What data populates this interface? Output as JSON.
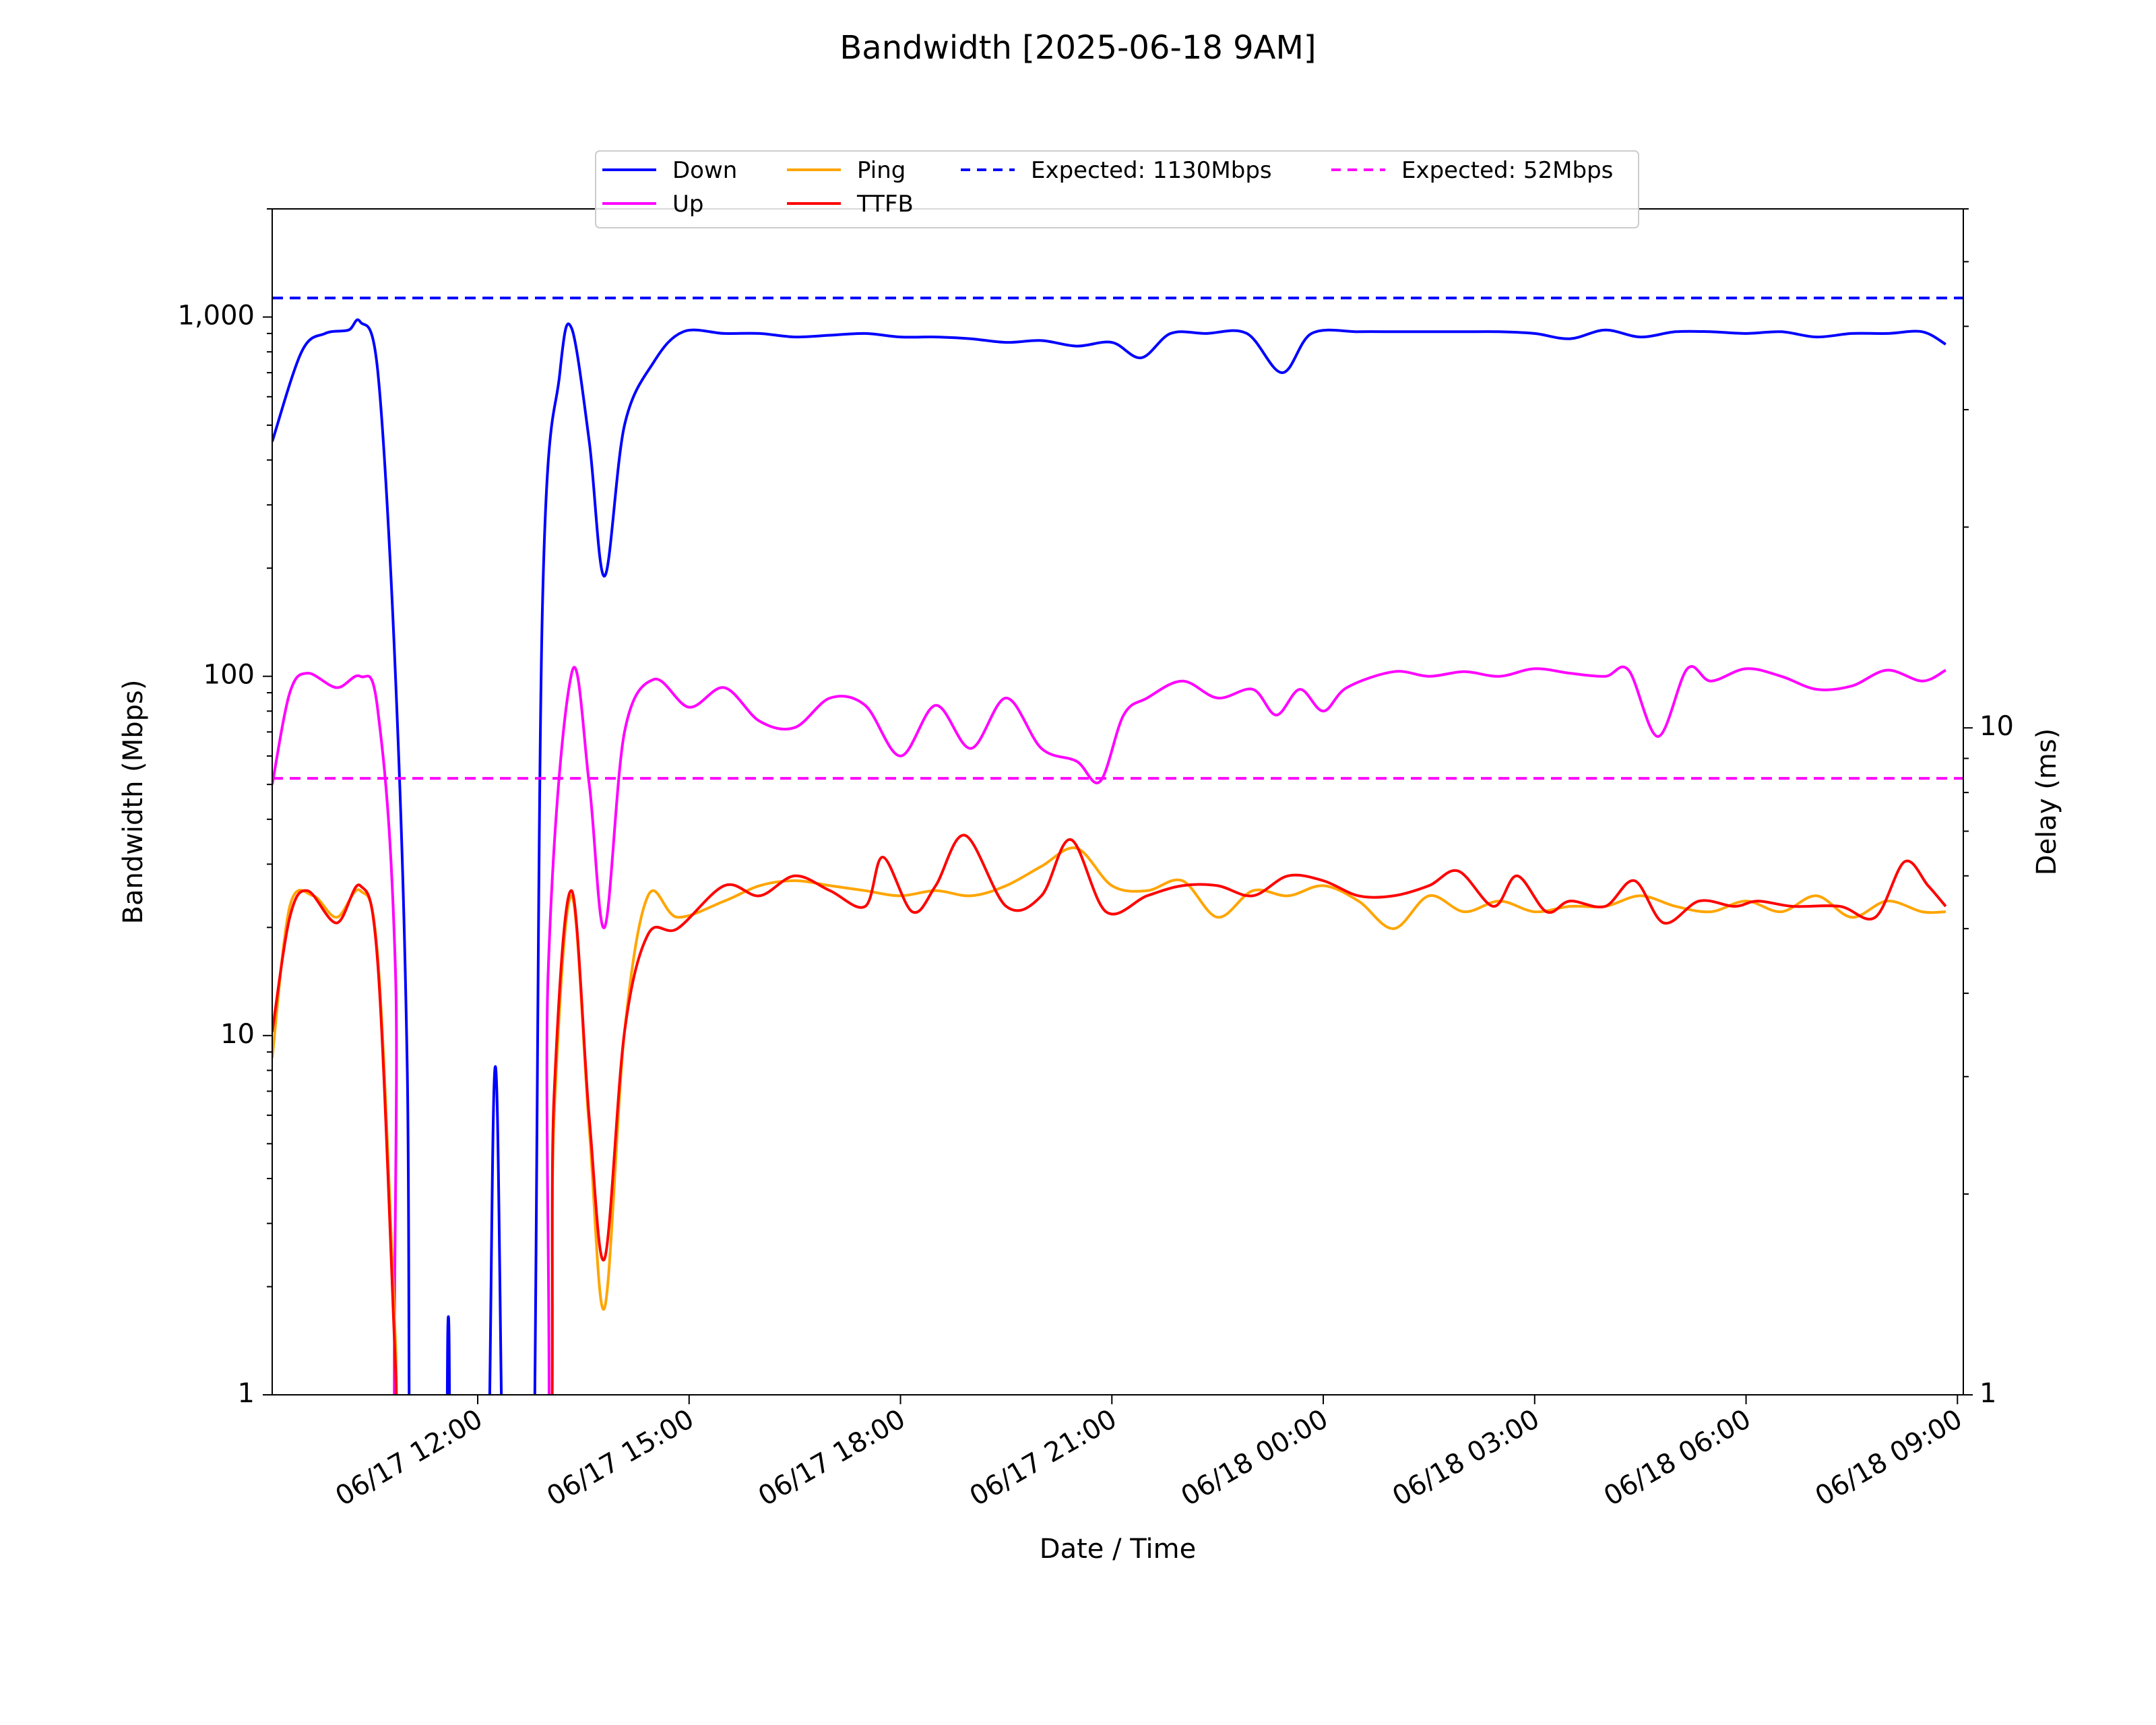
{
  "chart_data": {
    "type": "line",
    "title": "Bandwidth [2025-06-18 9AM]",
    "xlabel": "Date / Time",
    "ylabel": "Bandwidth (Mbps)",
    "ylabel_right": "Delay (ms)",
    "y_scale": "log",
    "ylim": [
      1,
      2000
    ],
    "y_ticks": [
      1,
      10,
      100,
      1000
    ],
    "y_tick_labels": [
      "1",
      "10",
      "100",
      "1,000"
    ],
    "y2_scale": "log",
    "y2lim": [
      1,
      60
    ],
    "y2_ticks": [
      1,
      10
    ],
    "y2_tick_labels": [
      "1",
      "10"
    ],
    "xlim": [
      "2025-06-17 09:05",
      "2025-06-18 09:05"
    ],
    "x_ticks": [
      "2025-06-17 12:00",
      "2025-06-17 15:00",
      "2025-06-17 18:00",
      "2025-06-17 21:00",
      "2025-06-18 00:00",
      "2025-06-18 03:00",
      "2025-06-18 06:00",
      "2025-06-18 09:00"
    ],
    "x_tick_labels": [
      "06/17 12:00",
      "06/17 15:00",
      "06/17 18:00",
      "06/17 21:00",
      "06/18 00:00",
      "06/18 03:00",
      "06/18 06:00",
      "06/18 09:00"
    ],
    "legend_position": "top-center",
    "grid": false,
    "series": [
      {
        "name": "Down",
        "axis": "left",
        "color": "#0000ff",
        "style": "solid",
        "points": [
          [
            "2025-06-17 09:05",
            450
          ],
          [
            "2025-06-17 09:30",
            800
          ],
          [
            "2025-06-17 09:50",
            900
          ],
          [
            "2025-06-17 10:10",
            920
          ],
          [
            "2025-06-17 10:20",
            970
          ],
          [
            "2025-06-17 10:35",
            700
          ],
          [
            "2025-06-17 10:50",
            100
          ],
          [
            "2025-06-17 11:00",
            8
          ],
          [
            "2025-06-17 11:05",
            1
          ],
          [
            "2025-06-17 11:30",
            1
          ],
          [
            "2025-06-17 11:35",
            1.65
          ],
          [
            "2025-06-17 11:40",
            1
          ],
          [
            "2025-06-17 12:05",
            1
          ],
          [
            "2025-06-17 12:15",
            8.2
          ],
          [
            "2025-06-17 12:25",
            1
          ],
          [
            "2025-06-17 12:45",
            1
          ],
          [
            "2025-06-17 12:55",
            150
          ],
          [
            "2025-06-17 13:10",
            700
          ],
          [
            "2025-06-17 13:20",
            930
          ],
          [
            "2025-06-17 13:35",
            450
          ],
          [
            "2025-06-17 13:48",
            190
          ],
          [
            "2025-06-17 14:05",
            500
          ],
          [
            "2025-06-17 14:30",
            750
          ],
          [
            "2025-06-17 14:55",
            910
          ],
          [
            "2025-06-17 15:30",
            900
          ],
          [
            "2025-06-17 16:00",
            900
          ],
          [
            "2025-06-17 16:30",
            880
          ],
          [
            "2025-06-17 17:00",
            890
          ],
          [
            "2025-06-17 17:30",
            900
          ],
          [
            "2025-06-17 18:00",
            880
          ],
          [
            "2025-06-17 18:30",
            880
          ],
          [
            "2025-06-17 19:00",
            870
          ],
          [
            "2025-06-17 19:30",
            850
          ],
          [
            "2025-06-17 20:00",
            860
          ],
          [
            "2025-06-17 20:30",
            830
          ],
          [
            "2025-06-17 21:00",
            850
          ],
          [
            "2025-06-17 21:25",
            770
          ],
          [
            "2025-06-17 21:50",
            900
          ],
          [
            "2025-06-17 22:20",
            900
          ],
          [
            "2025-06-17 22:55",
            900
          ],
          [
            "2025-06-17 23:25",
            700
          ],
          [
            "2025-06-17 23:50",
            900
          ],
          [
            "2025-06-18 00:30",
            910
          ],
          [
            "2025-06-18 01:00",
            910
          ],
          [
            "2025-06-18 01:30",
            910
          ],
          [
            "2025-06-18 02:00",
            910
          ],
          [
            "2025-06-18 02:30",
            910
          ],
          [
            "2025-06-18 03:00",
            900
          ],
          [
            "2025-06-18 03:30",
            870
          ],
          [
            "2025-06-18 04:00",
            920
          ],
          [
            "2025-06-18 04:30",
            880
          ],
          [
            "2025-06-18 05:00",
            910
          ],
          [
            "2025-06-18 05:30",
            910
          ],
          [
            "2025-06-18 06:00",
            900
          ],
          [
            "2025-06-18 06:30",
            910
          ],
          [
            "2025-06-18 07:00",
            880
          ],
          [
            "2025-06-18 07:30",
            900
          ],
          [
            "2025-06-18 08:00",
            900
          ],
          [
            "2025-06-18 08:30",
            910
          ],
          [
            "2025-06-18 08:50",
            840
          ]
        ]
      },
      {
        "name": "Up",
        "axis": "left",
        "color": "#ff00ff",
        "style": "solid",
        "points": [
          [
            "2025-06-17 09:05",
            50
          ],
          [
            "2025-06-17 09:20",
            90
          ],
          [
            "2025-06-17 09:35",
            102
          ],
          [
            "2025-06-17 10:00",
            93
          ],
          [
            "2025-06-17 10:20",
            100
          ],
          [
            "2025-06-17 10:35",
            80
          ],
          [
            "2025-06-17 10:50",
            15
          ],
          [
            "2025-06-17 11:00",
            1
          ],
          [
            "2025-06-17 12:50",
            1
          ],
          [
            "2025-06-17 13:00",
            15
          ],
          [
            "2025-06-17 13:20",
            102
          ],
          [
            "2025-06-17 13:35",
            50
          ],
          [
            "2025-06-17 13:48",
            20
          ],
          [
            "2025-06-17 14:05",
            70
          ],
          [
            "2025-06-17 14:30",
            98
          ],
          [
            "2025-06-17 15:00",
            82
          ],
          [
            "2025-06-17 15:30",
            93
          ],
          [
            "2025-06-17 16:00",
            75
          ],
          [
            "2025-06-17 16:30",
            72
          ],
          [
            "2025-06-17 17:00",
            87
          ],
          [
            "2025-06-17 17:30",
            83
          ],
          [
            "2025-06-17 18:00",
            60
          ],
          [
            "2025-06-17 18:30",
            83
          ],
          [
            "2025-06-17 19:00",
            63
          ],
          [
            "2025-06-17 19:30",
            87
          ],
          [
            "2025-06-17 20:00",
            63
          ],
          [
            "2025-06-17 20:30",
            58
          ],
          [
            "2025-06-17 20:50",
            51
          ],
          [
            "2025-06-17 21:10",
            78
          ],
          [
            "2025-06-17 21:30",
            87
          ],
          [
            "2025-06-17 22:00",
            97
          ],
          [
            "2025-06-17 22:30",
            87
          ],
          [
            "2025-06-17 23:00",
            92
          ],
          [
            "2025-06-17 23:20",
            78
          ],
          [
            "2025-06-17 23:40",
            92
          ],
          [
            "2025-06-18 00:00",
            80
          ],
          [
            "2025-06-18 00:20",
            93
          ],
          [
            "2025-06-18 01:00",
            103
          ],
          [
            "2025-06-18 01:30",
            100
          ],
          [
            "2025-06-18 02:00",
            103
          ],
          [
            "2025-06-18 02:30",
            100
          ],
          [
            "2025-06-18 03:00",
            105
          ],
          [
            "2025-06-18 03:30",
            102
          ],
          [
            "2025-06-18 04:00",
            100
          ],
          [
            "2025-06-18 04:20",
            104
          ],
          [
            "2025-06-18 04:45",
            68
          ],
          [
            "2025-06-18 05:10",
            105
          ],
          [
            "2025-06-18 05:30",
            97
          ],
          [
            "2025-06-18 06:00",
            105
          ],
          [
            "2025-06-18 06:30",
            100
          ],
          [
            "2025-06-18 07:00",
            92
          ],
          [
            "2025-06-18 07:30",
            94
          ],
          [
            "2025-06-18 08:00",
            104
          ],
          [
            "2025-06-18 08:30",
            97
          ],
          [
            "2025-06-18 08:50",
            104
          ]
        ]
      },
      {
        "name": "Ping",
        "axis": "right",
        "color": "#ffa500",
        "style": "solid",
        "points": [
          [
            "2025-06-17 09:05",
            3.2
          ],
          [
            "2025-06-17 09:20",
            5.4
          ],
          [
            "2025-06-17 09:40",
            5.6
          ],
          [
            "2025-06-17 10:00",
            5.2
          ],
          [
            "2025-06-17 10:20",
            5.7
          ],
          [
            "2025-06-17 10:35",
            4.5
          ],
          [
            "2025-06-17 10:50",
            1.2
          ],
          [
            "2025-06-17 11:00",
            1
          ],
          [
            "2025-06-17 12:50",
            1
          ],
          [
            "2025-06-17 13:05",
            2.6
          ],
          [
            "2025-06-17 13:20",
            5.6
          ],
          [
            "2025-06-17 13:35",
            2.5
          ],
          [
            "2025-06-17 13:48",
            1.35
          ],
          [
            "2025-06-17 14:05",
            3.5
          ],
          [
            "2025-06-17 14:25",
            5.6
          ],
          [
            "2025-06-17 14:50",
            5.2
          ],
          [
            "2025-06-17 15:30",
            5.5
          ],
          [
            "2025-06-17 16:00",
            5.8
          ],
          [
            "2025-06-17 16:30",
            5.9
          ],
          [
            "2025-06-17 17:00",
            5.8
          ],
          [
            "2025-06-17 17:30",
            5.7
          ],
          [
            "2025-06-17 18:00",
            5.6
          ],
          [
            "2025-06-17 18:30",
            5.7
          ],
          [
            "2025-06-17 19:00",
            5.6
          ],
          [
            "2025-06-17 19:30",
            5.8
          ],
          [
            "2025-06-17 20:00",
            6.2
          ],
          [
            "2025-06-17 20:30",
            6.6
          ],
          [
            "2025-06-17 21:00",
            5.8
          ],
          [
            "2025-06-17 21:30",
            5.7
          ],
          [
            "2025-06-17 22:00",
            5.9
          ],
          [
            "2025-06-17 22:30",
            5.2
          ],
          [
            "2025-06-17 23:00",
            5.7
          ],
          [
            "2025-06-17 23:30",
            5.6
          ],
          [
            "2025-06-18 00:00",
            5.8
          ],
          [
            "2025-06-18 00:30",
            5.5
          ],
          [
            "2025-06-18 01:00",
            5.0
          ],
          [
            "2025-06-18 01:30",
            5.6
          ],
          [
            "2025-06-18 02:00",
            5.3
          ],
          [
            "2025-06-18 02:30",
            5.5
          ],
          [
            "2025-06-18 03:00",
            5.3
          ],
          [
            "2025-06-18 03:30",
            5.4
          ],
          [
            "2025-06-18 04:00",
            5.4
          ],
          [
            "2025-06-18 04:30",
            5.6
          ],
          [
            "2025-06-18 05:00",
            5.4
          ],
          [
            "2025-06-18 05:30",
            5.3
          ],
          [
            "2025-06-18 06:00",
            5.5
          ],
          [
            "2025-06-18 06:30",
            5.3
          ],
          [
            "2025-06-18 07:00",
            5.6
          ],
          [
            "2025-06-18 07:30",
            5.2
          ],
          [
            "2025-06-18 08:00",
            5.5
          ],
          [
            "2025-06-18 08:30",
            5.3
          ],
          [
            "2025-06-18 08:50",
            5.3
          ]
        ]
      },
      {
        "name": "TTFB",
        "axis": "right",
        "color": "#ff0000",
        "style": "solid",
        "points": [
          [
            "2025-06-17 09:05",
            3.5
          ],
          [
            "2025-06-17 09:20",
            5.2
          ],
          [
            "2025-06-17 09:35",
            5.7
          ],
          [
            "2025-06-17 10:00",
            5.1
          ],
          [
            "2025-06-17 10:20",
            5.8
          ],
          [
            "2025-06-17 10:35",
            4.4
          ],
          [
            "2025-06-17 10:50",
            1.1
          ],
          [
            "2025-06-17 11:00",
            1
          ],
          [
            "2025-06-17 12:50",
            1
          ],
          [
            "2025-06-17 13:05",
            2.8
          ],
          [
            "2025-06-17 13:20",
            5.7
          ],
          [
            "2025-06-17 13:35",
            2.6
          ],
          [
            "2025-06-17 13:48",
            1.6
          ],
          [
            "2025-06-17 14:05",
            3.5
          ],
          [
            "2025-06-17 14:25",
            4.9
          ],
          [
            "2025-06-17 14:50",
            5.0
          ],
          [
            "2025-06-17 15:30",
            5.8
          ],
          [
            "2025-06-17 16:00",
            5.6
          ],
          [
            "2025-06-17 16:30",
            6.0
          ],
          [
            "2025-06-17 17:00",
            5.7
          ],
          [
            "2025-06-17 17:30",
            5.4
          ],
          [
            "2025-06-17 17:45",
            6.4
          ],
          [
            "2025-06-17 18:10",
            5.3
          ],
          [
            "2025-06-17 18:30",
            5.8
          ],
          [
            "2025-06-17 18:55",
            6.9
          ],
          [
            "2025-06-17 19:30",
            5.4
          ],
          [
            "2025-06-17 20:00",
            5.6
          ],
          [
            "2025-06-17 20:25",
            6.8
          ],
          [
            "2025-06-17 20:55",
            5.3
          ],
          [
            "2025-06-17 21:30",
            5.6
          ],
          [
            "2025-06-17 22:00",
            5.8
          ],
          [
            "2025-06-17 22:30",
            5.8
          ],
          [
            "2025-06-17 23:00",
            5.6
          ],
          [
            "2025-06-17 23:30",
            6.0
          ],
          [
            "2025-06-18 00:00",
            5.9
          ],
          [
            "2025-06-18 00:30",
            5.6
          ],
          [
            "2025-06-18 01:00",
            5.6
          ],
          [
            "2025-06-18 01:30",
            5.8
          ],
          [
            "2025-06-18 01:55",
            6.1
          ],
          [
            "2025-06-18 02:25",
            5.4
          ],
          [
            "2025-06-18 02:45",
            6.0
          ],
          [
            "2025-06-18 03:10",
            5.3
          ],
          [
            "2025-06-18 03:30",
            5.5
          ],
          [
            "2025-06-18 04:00",
            5.4
          ],
          [
            "2025-06-18 04:25",
            5.9
          ],
          [
            "2025-06-18 04:50",
            5.1
          ],
          [
            "2025-06-18 05:20",
            5.5
          ],
          [
            "2025-06-18 05:50",
            5.4
          ],
          [
            "2025-06-18 06:10",
            5.5
          ],
          [
            "2025-06-18 06:40",
            5.4
          ],
          [
            "2025-06-18 07:20",
            5.4
          ],
          [
            "2025-06-18 07:50",
            5.2
          ],
          [
            "2025-06-18 08:15",
            6.3
          ],
          [
            "2025-06-18 08:35",
            5.8
          ],
          [
            "2025-06-18 08:50",
            5.4
          ]
        ]
      },
      {
        "name": "Expected: 1130Mbps",
        "axis": "left",
        "color": "#0000ff",
        "style": "dashed",
        "points": [
          [
            "2025-06-17 09:05",
            1130
          ],
          [
            "2025-06-18 09:05",
            1130
          ]
        ]
      },
      {
        "name": "Expected: 52Mbps",
        "axis": "left",
        "color": "#ff00ff",
        "style": "dashed",
        "points": [
          [
            "2025-06-17 09:05",
            52
          ],
          [
            "2025-06-18 09:05",
            52
          ]
        ]
      }
    ]
  }
}
